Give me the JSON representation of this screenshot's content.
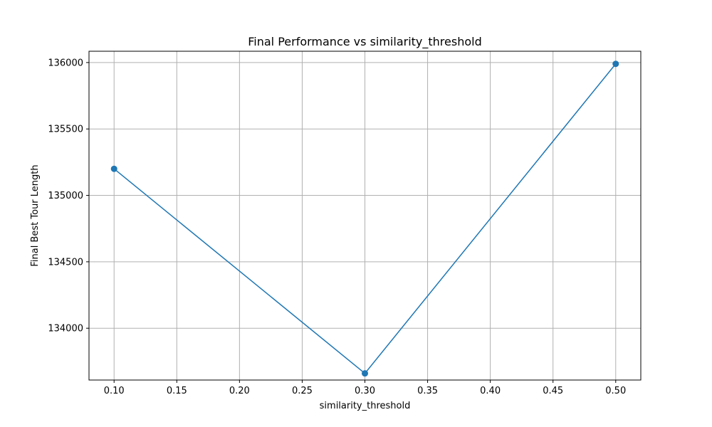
{
  "chart_data": {
    "type": "line",
    "title": "Final Performance vs similarity_threshold",
    "xlabel": "similarity_threshold",
    "ylabel": "Final Best Tour Length",
    "x": [
      0.1,
      0.3,
      0.5
    ],
    "series": [
      {
        "values": [
          135200,
          133660,
          135990
        ],
        "color": "#1f77b4",
        "marker": "circle"
      }
    ],
    "xlim": [
      0.08,
      0.52
    ],
    "ylim": [
      133610,
      136085
    ],
    "xticks": [
      0.1,
      0.15,
      0.2,
      0.25,
      0.3,
      0.35,
      0.4,
      0.45,
      0.5
    ],
    "xtick_labels": [
      "0.10",
      "0.15",
      "0.20",
      "0.25",
      "0.30",
      "0.35",
      "0.40",
      "0.45",
      "0.50"
    ],
    "yticks": [
      134000,
      134500,
      135000,
      135500,
      136000
    ],
    "ytick_labels": [
      "134000",
      "134500",
      "135000",
      "135500",
      "136000"
    ],
    "grid": true
  }
}
